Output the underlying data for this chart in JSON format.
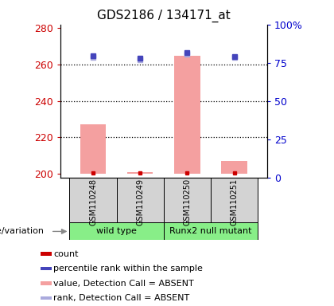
{
  "title": "GDS2186 / 134171_at",
  "samples": [
    "GSM110248",
    "GSM110249",
    "GSM110250",
    "GSM110251"
  ],
  "ylim_left": [
    198,
    282
  ],
  "ylim_right": [
    0,
    100
  ],
  "yticks_left": [
    200,
    220,
    240,
    260,
    280
  ],
  "ytick_right_labels": [
    "0",
    "25",
    "50",
    "75",
    "100%"
  ],
  "ytick_right_vals": [
    0,
    25,
    50,
    75,
    100
  ],
  "bar_values": [
    227,
    200.8,
    265,
    207
  ],
  "bar_color": "#f4a0a0",
  "bar_base": 200,
  "rank_dot_values": [
    78.5,
    77,
    80.5,
    78.5
  ],
  "rank_dot_color": "#aaaadd",
  "blue_dot_values": [
    79.5,
    78,
    81.5,
    79
  ],
  "blue_dot_color": "#4444bb",
  "red_dot_values": [
    200.3,
    200.3,
    200.3,
    200.3
  ],
  "red_dot_color": "#cc0000",
  "dotted_lines": [
    220,
    240,
    260
  ],
  "left_axis_color": "#cc0000",
  "right_axis_color": "#0000cc",
  "group_colors": [
    "#88ee88",
    "#88ee88"
  ],
  "legend_items": [
    {
      "label": "count",
      "color": "#cc0000"
    },
    {
      "label": "percentile rank within the sample",
      "color": "#4444bb"
    },
    {
      "label": "value, Detection Call = ABSENT",
      "color": "#f4a0a0"
    },
    {
      "label": "rank, Detection Call = ABSENT",
      "color": "#aaaadd"
    }
  ]
}
